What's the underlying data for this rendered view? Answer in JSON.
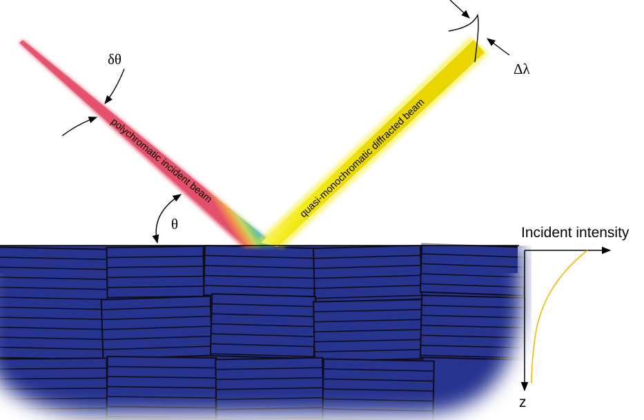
{
  "labels": {
    "delta_theta": "δθ",
    "theta": "θ",
    "delta_lambda": "Δλ",
    "incident_beam": "polychromatic incident beam",
    "diffracted_beam": "quasi-monochromatic diffracted beam",
    "incident_intensity": "Incident intensity",
    "z_axis": "z"
  },
  "colors": {
    "crystal": "#26338f",
    "block_lines": "#0d0d1a",
    "diffracted_beam": "#f4ec1a",
    "intensity_curve": "#f2b800"
  }
}
